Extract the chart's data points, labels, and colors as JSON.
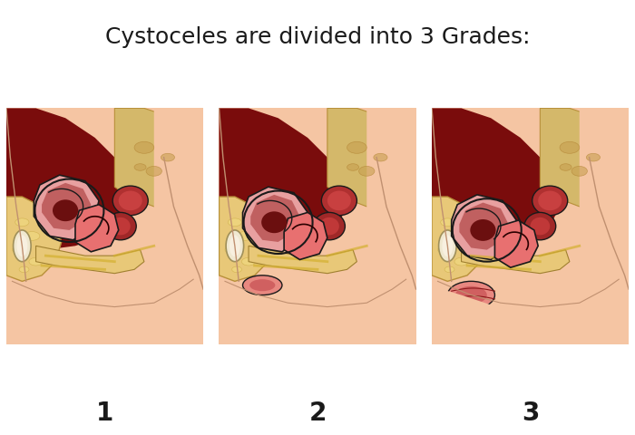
{
  "title": "Cystoceles are divided into 3 Grades:",
  "title_fontsize": 18,
  "title_color": "#1a1a1a",
  "background_color": "#ffffff",
  "labels": [
    "1",
    "2",
    "3"
  ],
  "label_fontsize": 20,
  "label_fontweight": "bold",
  "skin_light": "#f5c5a3",
  "skin_mid": "#e8a882",
  "skin_dark": "#d4956a",
  "dark_red_bg": "#8b1010",
  "pelvic_bg": "#7a0c0c",
  "bone_yellow": "#d4b86a",
  "bone_light": "#e8d090",
  "bone_outline": "#b8903a",
  "bladder_pink": "#e8a0a0",
  "bladder_dark": "#c06060",
  "bladder_inner": "#8b1a1a",
  "organ_red": "#c03030",
  "organ_dark": "#8b0000",
  "organ_pink": "#e87070",
  "rectum_red": "#a02020",
  "pubic_cream": "#f0e8d0",
  "tissue_yellow": "#e8c878",
  "line_dark": "#1a1a1a",
  "vagina_pink": "#e88880",
  "perineum_skin": "#f0c5a5"
}
